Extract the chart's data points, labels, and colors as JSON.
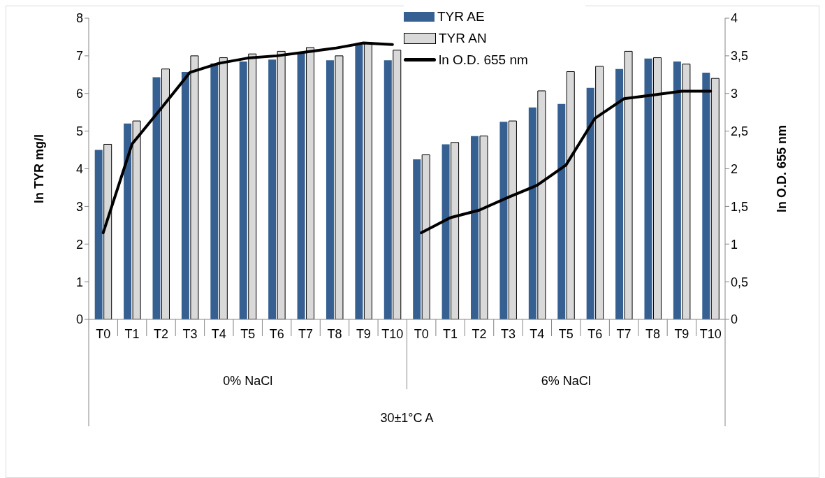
{
  "chart_data": {
    "type": "bar",
    "ylabel": "ln TYR mg/l",
    "y2label": "ln O.D. 655 nm",
    "annotations": [
      "0% NaCl",
      "6% NaCl",
      "30±1°C A"
    ],
    "categories": [
      "T0",
      "T1",
      "T2",
      "T3",
      "T4",
      "T5",
      "T6",
      "T7",
      "T8",
      "T9",
      "T10",
      "T0",
      "T1",
      "T2",
      "T3",
      "T4",
      "T5",
      "T6",
      "T7",
      "T8",
      "T9",
      "T10"
    ],
    "series": [
      {
        "name": "TYR AE",
        "color": "#366092",
        "values": [
          4.5,
          5.2,
          6.43,
          6.57,
          6.8,
          6.85,
          6.9,
          7.1,
          6.88,
          7.3,
          6.88,
          4.25,
          4.65,
          4.87,
          5.25,
          5.63,
          5.72,
          6.15,
          6.65,
          6.93,
          6.85,
          6.55
        ]
      },
      {
        "name": "TYR AN",
        "color": "#d9d9d9",
        "values": [
          4.65,
          5.27,
          6.65,
          7.0,
          6.95,
          7.05,
          7.12,
          7.22,
          7.0,
          7.35,
          7.15,
          4.37,
          4.7,
          4.87,
          5.27,
          6.07,
          6.58,
          6.72,
          7.12,
          6.95,
          6.78,
          6.4
        ]
      },
      {
        "name": "ln O.D. 655 nm",
        "type": "line",
        "axis": "y2",
        "color": "#000000",
        "values": [
          1.15,
          2.33,
          2.8,
          3.28,
          3.4,
          3.47,
          3.5,
          3.55,
          3.6,
          3.67,
          3.65,
          null,
          null,
          null,
          null,
          null,
          null,
          null,
          null,
          null,
          null,
          null
        ]
      },
      {
        "type": "line",
        "axis": "y2",
        "color": "#000000",
        "values": [
          null,
          null,
          null,
          null,
          null,
          null,
          null,
          null,
          null,
          null,
          null,
          1.15,
          1.35,
          1.45,
          1.62,
          1.78,
          2.05,
          2.67,
          2.93,
          2.98,
          3.03,
          3.03
        ]
      }
    ],
    "ylim": [
      0,
      8
    ],
    "yticks": [
      0,
      1,
      2,
      3,
      4,
      5,
      6,
      7,
      8
    ],
    "y2lim": [
      0,
      4
    ],
    "y2ticks": [
      0,
      {
        "value": 0.5,
        "label": "0,5"
      },
      1,
      {
        "value": 1.5,
        "label": "1,5"
      },
      2,
      {
        "value": 2.5,
        "label": "2,5"
      },
      3,
      {
        "value": 3.5,
        "label": "3,5"
      },
      4
    ],
    "legend": "top",
    "grid": false,
    "marker": "none",
    "line_style": "solid"
  }
}
